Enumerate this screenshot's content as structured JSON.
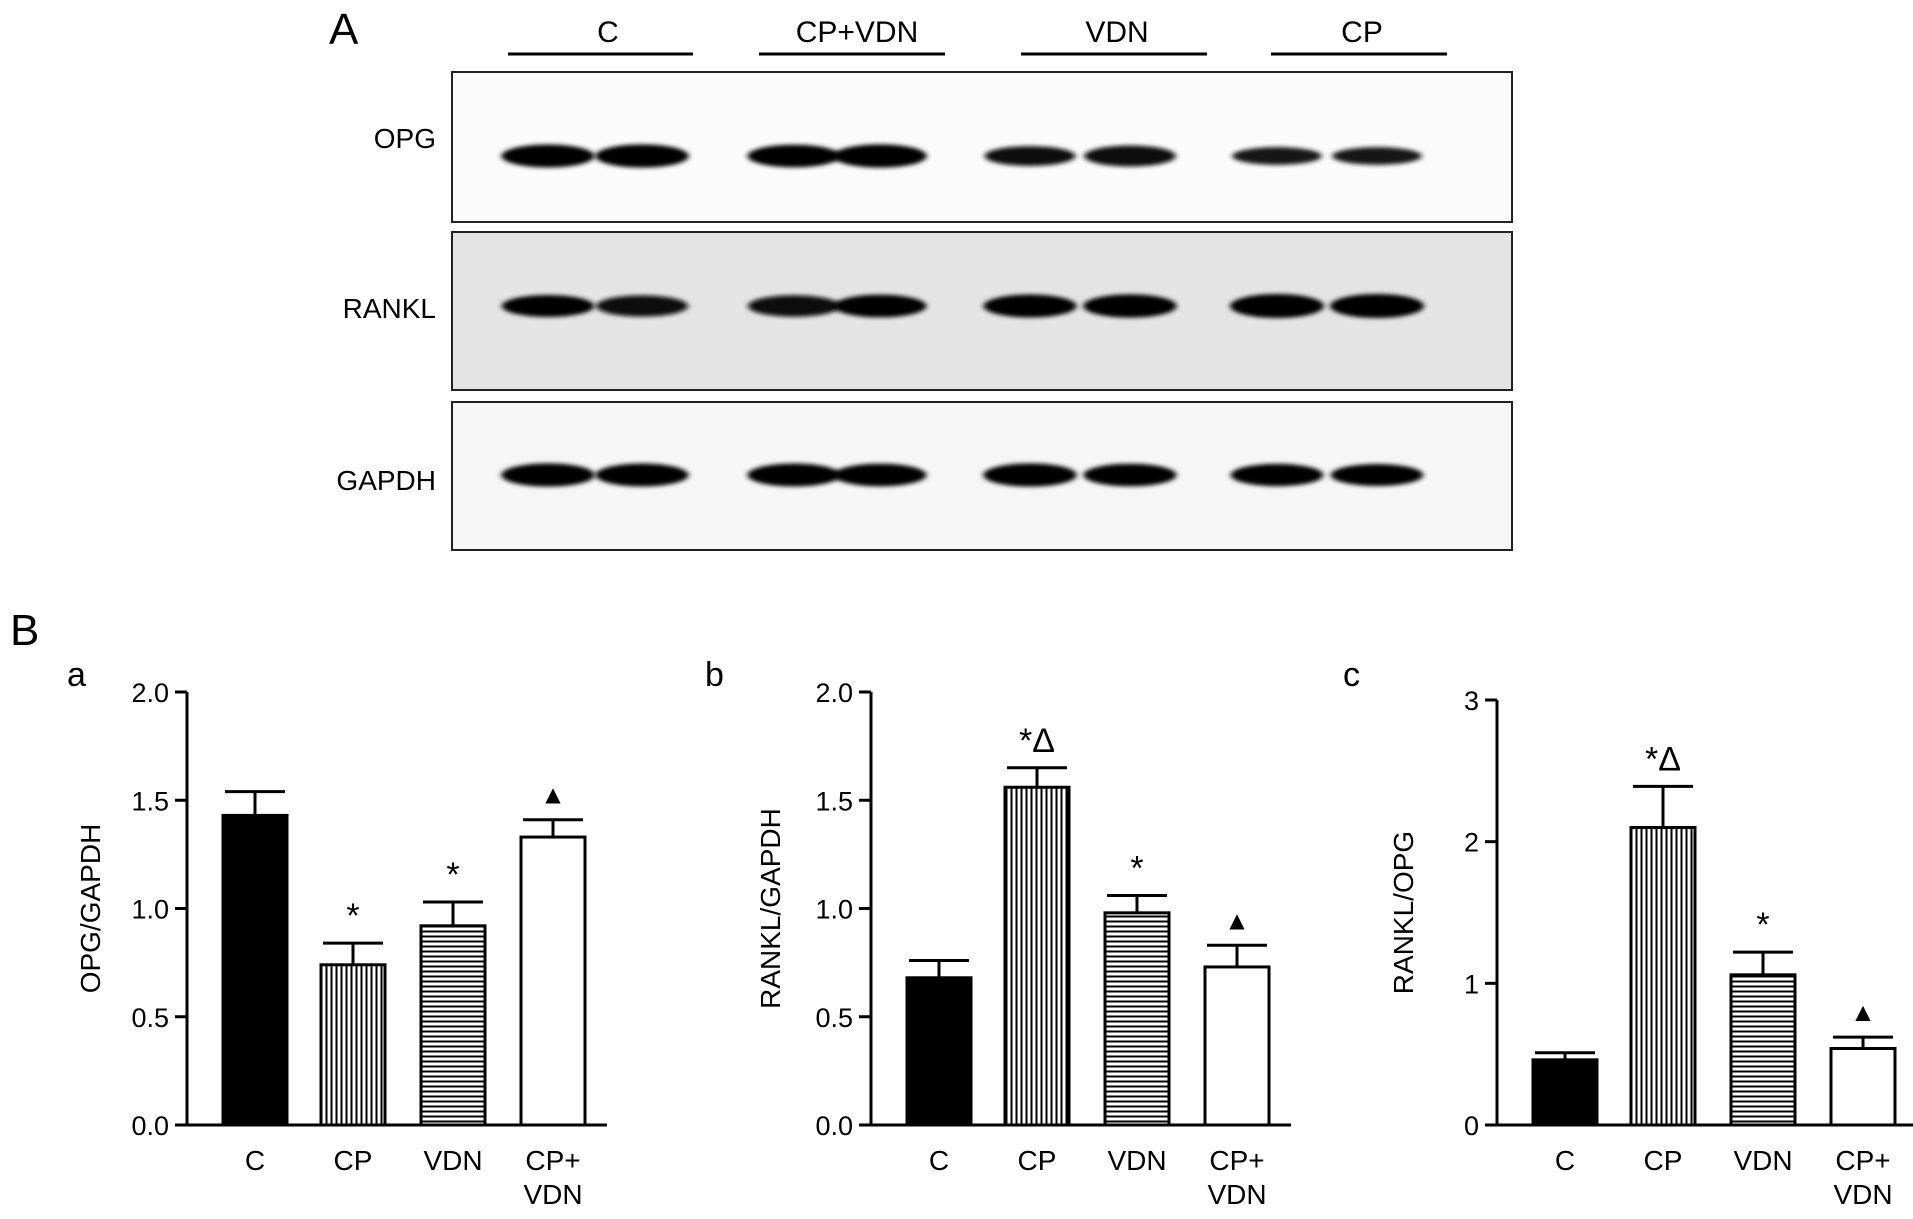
{
  "panel_a": {
    "label": "A",
    "groups": [
      "C",
      "CP+VDN",
      "VDN",
      "CP"
    ],
    "blots": [
      {
        "label": "OPG",
        "intensity": [
          0.92,
          0.95,
          0.9,
          0.95,
          0.7,
          0.78,
          0.55,
          0.55
        ]
      },
      {
        "label": "RANKL",
        "intensity": [
          0.85,
          0.8,
          0.82,
          0.9,
          0.92,
          0.95,
          1.0,
          1.0
        ]
      },
      {
        "label": "GAPDH",
        "intensity": [
          0.95,
          0.92,
          0.92,
          0.9,
          0.95,
          0.9,
          0.88,
          0.85
        ]
      }
    ]
  },
  "panel_b": {
    "label": "B",
    "colors": {
      "C": "#000000",
      "stroke": "#000000",
      "fill_empty": "#ffffff"
    },
    "patterns": {
      "C": "solid",
      "CP": "vertical-lines",
      "VDN": "horizontal-lines",
      "CP+VDN": "open"
    }
  },
  "chart_data": [
    {
      "type": "bar",
      "panel": "a",
      "ylabel": "OPG/GAPDH",
      "categories": [
        [
          "C"
        ],
        [
          "CP"
        ],
        [
          "VDN"
        ],
        [
          "CP+",
          "VDN"
        ]
      ],
      "values": [
        1.43,
        0.74,
        0.92,
        1.33
      ],
      "errors": [
        0.11,
        0.1,
        0.11,
        0.08
      ],
      "annotations": [
        "",
        "*",
        "*",
        "▲"
      ],
      "ylim": [
        0,
        2.0
      ],
      "yticks": [
        0.0,
        0.5,
        1.0,
        1.5,
        2.0
      ],
      "ytick_labels": [
        "0.0",
        "0.5",
        "1.0",
        "1.5",
        "2.0"
      ]
    },
    {
      "type": "bar",
      "panel": "b",
      "ylabel": "RANKL/GAPDH",
      "categories": [
        [
          "C"
        ],
        [
          "CP"
        ],
        [
          "VDN"
        ],
        [
          "CP+",
          "VDN"
        ]
      ],
      "values": [
        0.68,
        1.56,
        0.98,
        0.73
      ],
      "errors": [
        0.08,
        0.09,
        0.08,
        0.1
      ],
      "annotations": [
        "",
        "*Δ",
        "*",
        "▲"
      ],
      "ylim": [
        0,
        2.0
      ],
      "yticks": [
        0.0,
        0.5,
        1.0,
        1.5,
        2.0
      ],
      "ytick_labels": [
        "0.0",
        "0.5",
        "1.0",
        "1.5",
        "2.0"
      ]
    },
    {
      "type": "bar",
      "panel": "c",
      "ylabel": "RANKL/OPG",
      "categories": [
        [
          "C"
        ],
        [
          "CP"
        ],
        [
          "VDN"
        ],
        [
          "CP+",
          "VDN"
        ]
      ],
      "values": [
        0.46,
        2.1,
        1.06,
        0.54
      ],
      "errors": [
        0.05,
        0.29,
        0.16,
        0.08
      ],
      "annotations": [
        "",
        "*Δ",
        "*",
        "▲"
      ],
      "ylim": [
        0,
        3
      ],
      "yticks": [
        0,
        1,
        2,
        3
      ],
      "ytick_labels": [
        "0",
        "1",
        "2",
        "3"
      ]
    }
  ]
}
